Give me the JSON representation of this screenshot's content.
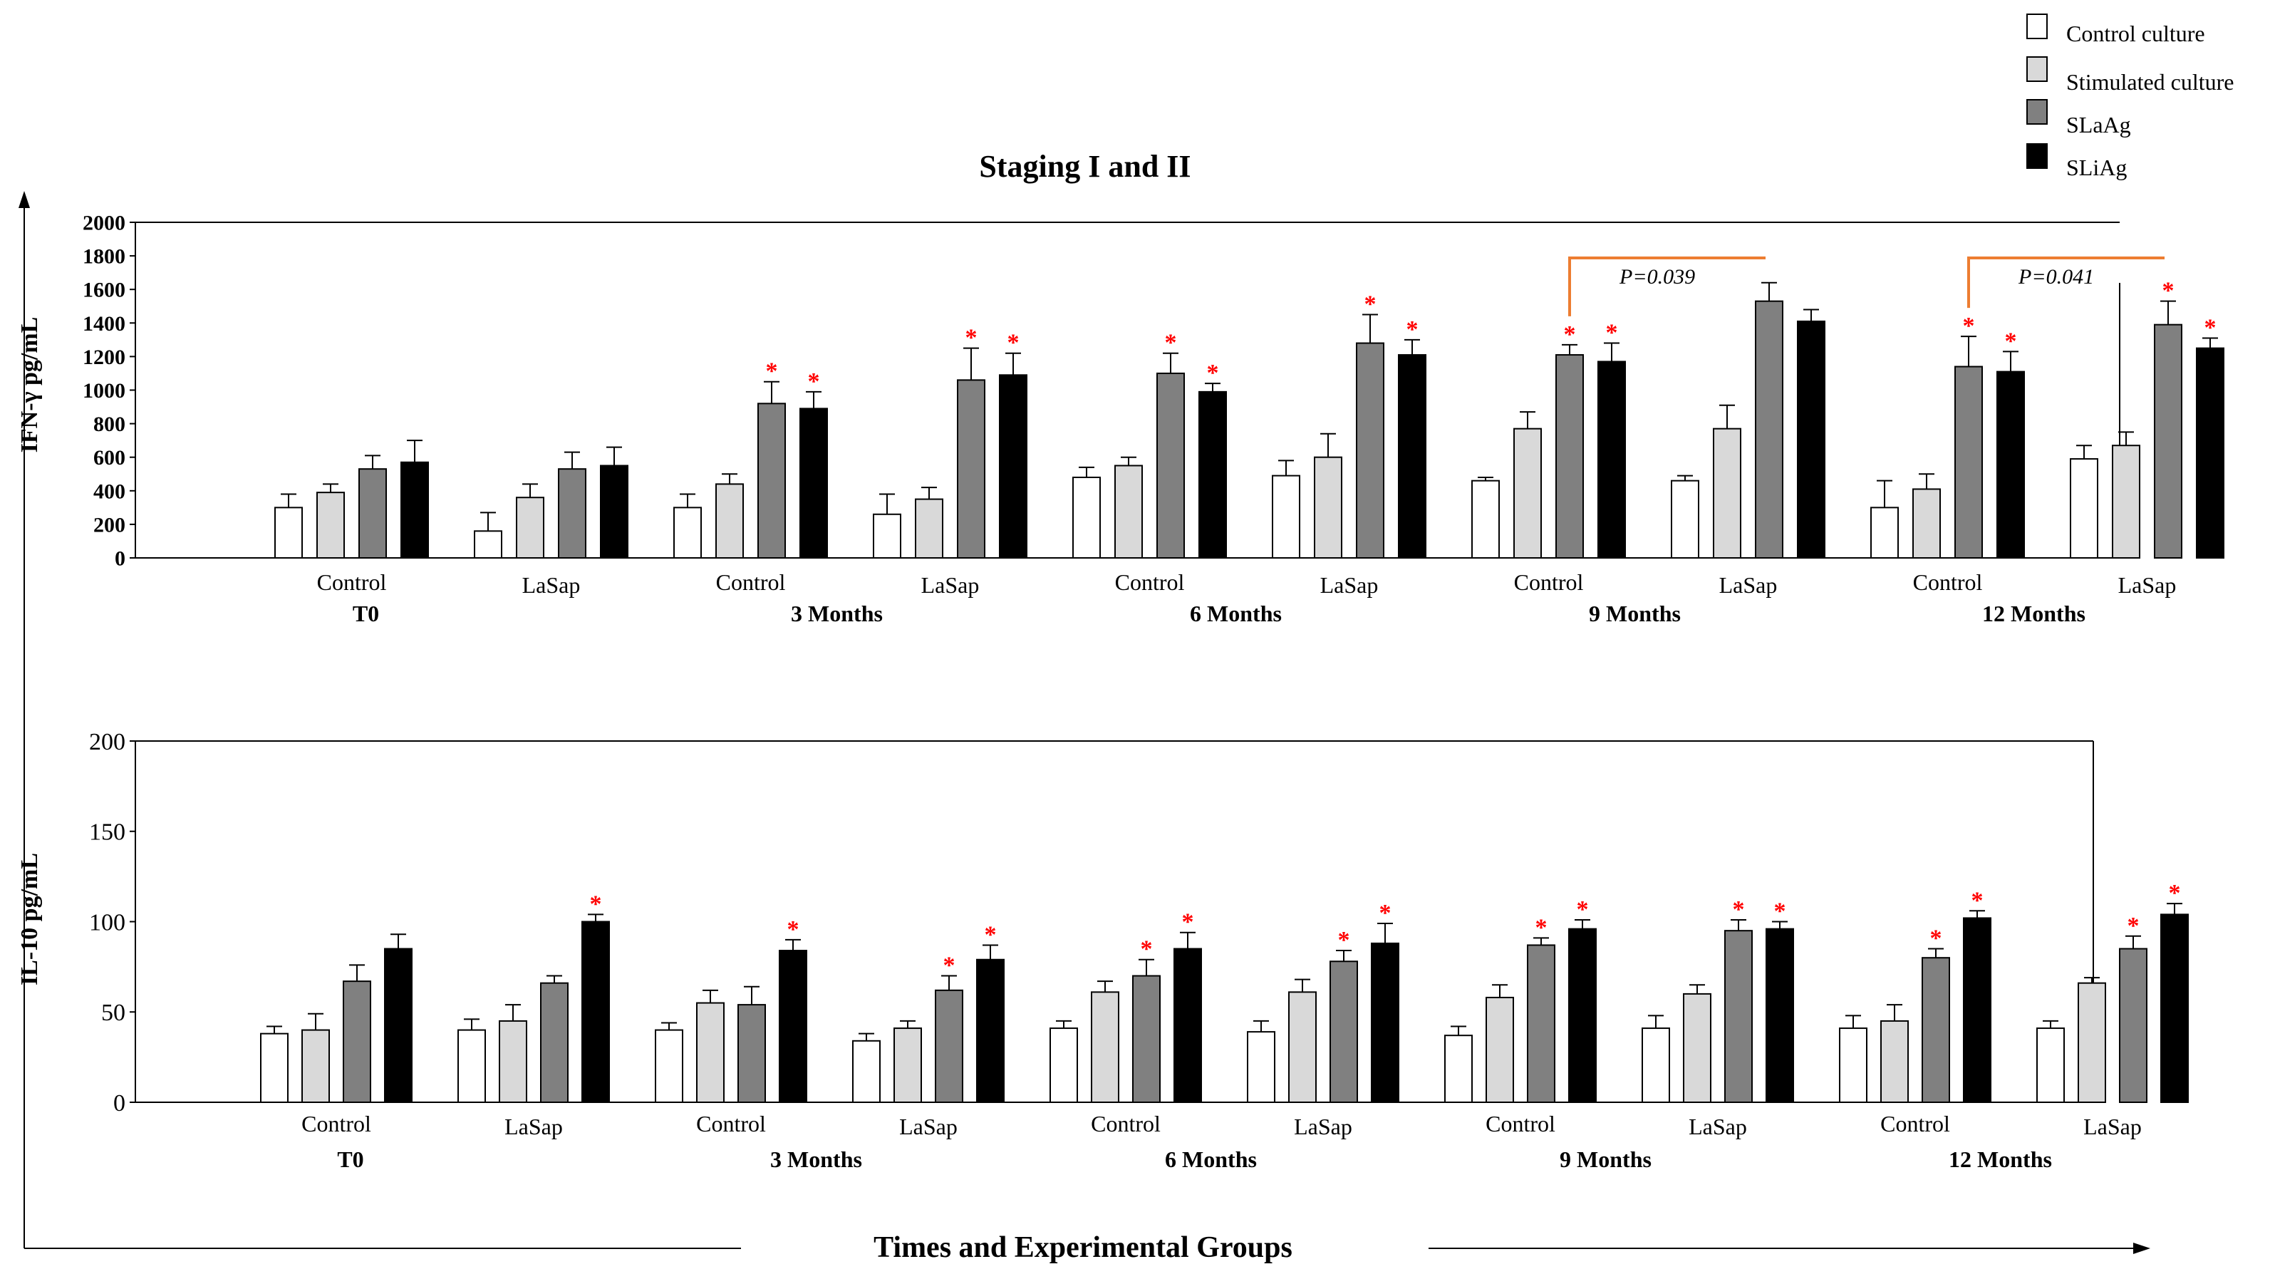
{
  "title": "Staging I and II",
  "xlabel": "Times and Experimental Groups",
  "colors": {
    "Control culture": "#ffffff",
    "Stimulated culture": "#d9d9d9",
    "SLaAg": "#808080",
    "SLiAg": "#000000",
    "significance": "#ff0000",
    "bracket": "#ed7d31"
  },
  "chart_data": [
    {
      "type": "bar",
      "ylabel": "IFN-γ pg/mL",
      "ylim": [
        0,
        2000
      ],
      "yticks": [
        0,
        200,
        400,
        600,
        800,
        1000,
        1200,
        1400,
        1600,
        1800,
        2000
      ],
      "legend": [
        "Control culture",
        "Stimulated culture",
        "SLaAg",
        "SLiAg"
      ],
      "legend_position": "top-right",
      "times": [
        "T0",
        "3 Months",
        "6 Months",
        "9 Months",
        "12 Months"
      ],
      "groups": [
        "Control",
        "LaSap"
      ],
      "series": [
        {
          "name": "Control culture",
          "values": [
            300,
            160,
            300,
            260,
            480,
            490,
            460,
            460,
            300,
            590
          ],
          "errors": [
            80,
            110,
            80,
            120,
            60,
            90,
            20,
            30,
            160,
            80
          ]
        },
        {
          "name": "Stimulated culture",
          "values": [
            390,
            360,
            440,
            350,
            550,
            600,
            770,
            770,
            410,
            670
          ],
          "errors": [
            50,
            80,
            60,
            70,
            50,
            140,
            100,
            140,
            90,
            80
          ]
        },
        {
          "name": "SLaAg",
          "values": [
            530,
            530,
            920,
            1060,
            1100,
            1280,
            1210,
            1530,
            1140,
            1390
          ],
          "errors": [
            80,
            100,
            130,
            190,
            120,
            170,
            60,
            110,
            180,
            140
          ]
        },
        {
          "name": "SLiAg",
          "values": [
            570,
            550,
            890,
            1090,
            990,
            1210,
            1170,
            1410,
            1110,
            1250
          ],
          "errors": [
            130,
            110,
            100,
            130,
            50,
            90,
            110,
            70,
            120,
            60
          ]
        }
      ],
      "significant": [
        [
          false,
          false,
          false,
          false,
          false,
          false,
          false,
          false,
          false,
          false
        ],
        [
          false,
          false,
          false,
          false,
          false,
          false,
          false,
          false,
          false,
          false
        ],
        [
          false,
          false,
          true,
          true,
          true,
          true,
          true,
          false,
          true,
          true
        ],
        [
          false,
          false,
          true,
          true,
          true,
          true,
          true,
          false,
          true,
          true
        ]
      ],
      "significance_label": "*",
      "brackets": [
        {
          "from_group": 6,
          "to_group": 7,
          "label": "P=0.039"
        },
        {
          "from_group": 8,
          "to_group": 9,
          "label": "P=0.041"
        }
      ]
    },
    {
      "type": "bar",
      "ylabel": "IL-10 pg/mL",
      "ylim": [
        0,
        200
      ],
      "yticks": [
        0,
        50,
        100,
        150,
        200
      ],
      "times": [
        "T0",
        "3 Months",
        "6 Months",
        "9 Months",
        "12 Months"
      ],
      "groups": [
        "Control",
        "LaSap"
      ],
      "series": [
        {
          "name": "Control culture",
          "values": [
            38,
            40,
            40,
            34,
            41,
            39,
            37,
            41,
            41,
            41
          ],
          "errors": [
            4,
            6,
            4,
            4,
            4,
            6,
            5,
            7,
            7,
            4
          ]
        },
        {
          "name": "Stimulated culture",
          "values": [
            40,
            45,
            55,
            41,
            61,
            61,
            58,
            60,
            45,
            66
          ],
          "errors": [
            9,
            9,
            7,
            4,
            6,
            7,
            7,
            5,
            9,
            3
          ]
        },
        {
          "name": "SLaAg",
          "values": [
            67,
            66,
            54,
            62,
            70,
            78,
            87,
            95,
            80,
            85
          ],
          "errors": [
            9,
            4,
            10,
            8,
            9,
            6,
            4,
            6,
            5,
            7
          ]
        },
        {
          "name": "SLiAg",
          "values": [
            85,
            100,
            84,
            79,
            85,
            88,
            96,
            96,
            102,
            104
          ],
          "errors": [
            8,
            4,
            6,
            8,
            9,
            11,
            5,
            4,
            4,
            6
          ]
        }
      ],
      "significant": [
        [
          false,
          false,
          false,
          false,
          false,
          false,
          false,
          false,
          false,
          false
        ],
        [
          false,
          false,
          false,
          false,
          false,
          false,
          false,
          false,
          false,
          false
        ],
        [
          false,
          false,
          false,
          true,
          true,
          true,
          true,
          true,
          true,
          true
        ],
        [
          false,
          true,
          true,
          true,
          true,
          true,
          true,
          true,
          true,
          true
        ]
      ],
      "significance_label": "*"
    }
  ]
}
